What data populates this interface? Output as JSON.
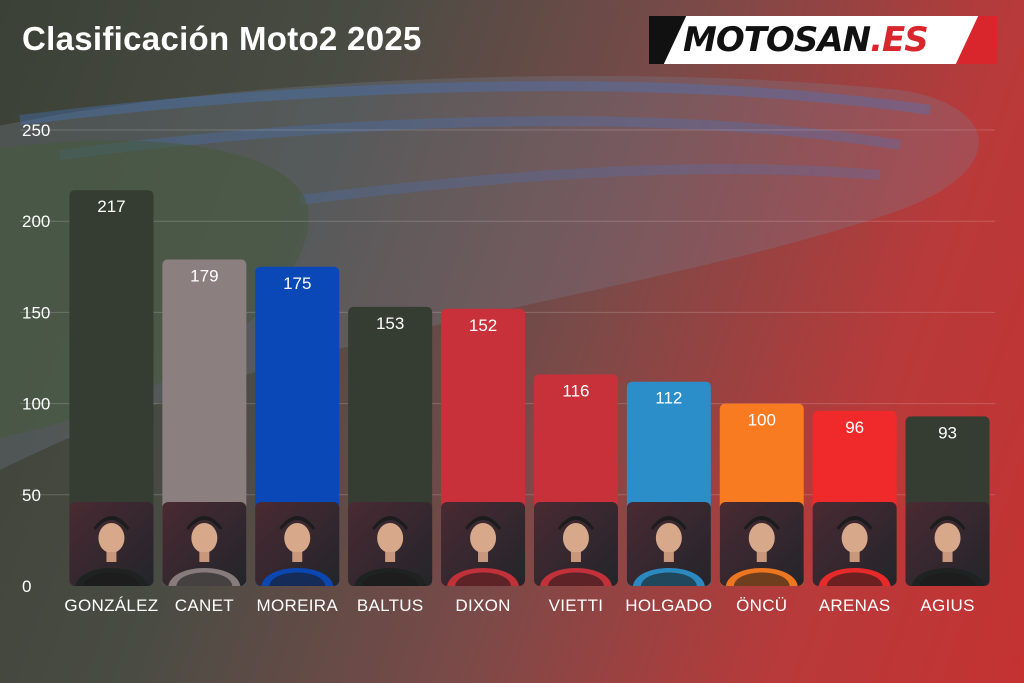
{
  "title": "Clasificación Moto2 2025",
  "logo": {
    "text_main": "MOTOSAN",
    "text_accent": ".ES"
  },
  "chart_data": {
    "type": "bar",
    "title": "Clasificación Moto2 2025",
    "xlabel": "",
    "ylabel": "",
    "ylim": [
      0,
      250
    ],
    "yticks": [
      0,
      50,
      100,
      150,
      200,
      250
    ],
    "grid": true,
    "categories": [
      "GONZÁLEZ",
      "CANET",
      "MOREIRA",
      "BALTUS",
      "DIXON",
      "VIETTI",
      "HOLGADO",
      "ÖNCÜ",
      "ARENAS",
      "AGIUS"
    ],
    "values": [
      217,
      179,
      175,
      153,
      152,
      116,
      112,
      100,
      96,
      93
    ],
    "colors": [
      "#353c31",
      "#8c7f7f",
      "#0a48b8",
      "#353c31",
      "#c8313a",
      "#c8313a",
      "#2b8ec8",
      "#f87a21",
      "#f02a2a",
      "#353c31"
    ],
    "avatar_icon": "rider-portrait-icon"
  }
}
